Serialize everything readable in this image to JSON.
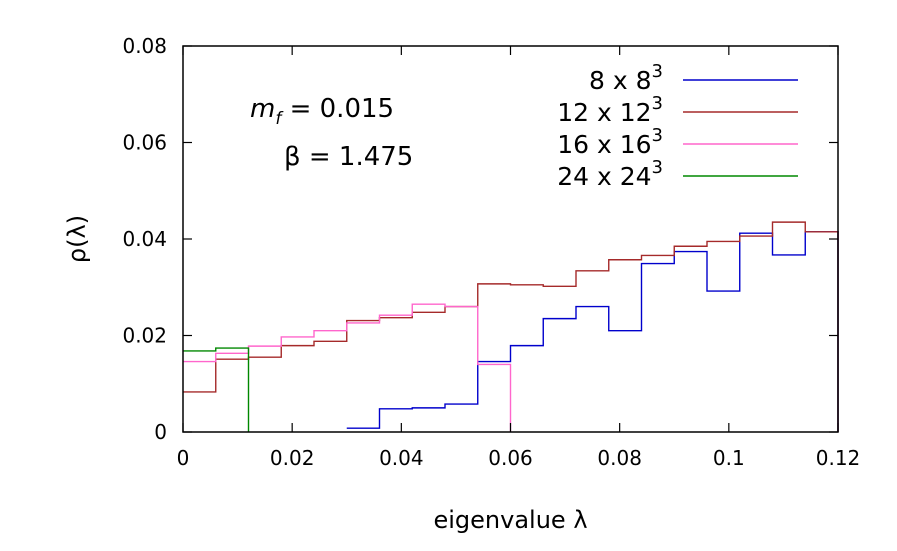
{
  "chart_data": {
    "type": "line",
    "step": true,
    "xlabel": "eigenvalue λ",
    "ylabel": "ρ(λ)",
    "xlim": [
      0,
      0.12
    ],
    "ylim": [
      0,
      0.08
    ],
    "xticks": [
      0,
      0.02,
      0.04,
      0.06,
      0.08,
      0.1,
      0.12
    ],
    "xtick_labels": [
      "0",
      "0.02",
      "0.04",
      "0.06",
      "0.08",
      "0.1",
      "0.12"
    ],
    "yticks": [
      0,
      0.02,
      0.04,
      0.06,
      0.08
    ],
    "ytick_labels": [
      "0",
      "0.02",
      "0.04",
      "0.06",
      "0.08"
    ],
    "legend_position": "top-right",
    "annotations": [
      {
        "symbol": "m",
        "subscript": "f",
        "text": " = 0.015"
      },
      {
        "text": "β = 1.475"
      }
    ],
    "series": [
      {
        "name": "8 x 8",
        "name_sup": "3",
        "color": "#0000cc",
        "edges": [
          0.03,
          0.036,
          0.042,
          0.048,
          0.054,
          0.06,
          0.066,
          0.072,
          0.078,
          0.084,
          0.09,
          0.096,
          0.102,
          0.108,
          0.114,
          0.12
        ],
        "values": [
          0.0008,
          0.0048,
          0.005,
          0.0058,
          0.0146,
          0.0179,
          0.0235,
          0.026,
          0.021,
          0.0349,
          0.0374,
          0.0292,
          0.0412,
          0.0367,
          0.0415
        ]
      },
      {
        "name": "12 x 12",
        "name_sup": "3",
        "color": "#a52a2a",
        "edges": [
          0,
          0.006,
          0.012,
          0.018,
          0.024,
          0.03,
          0.036,
          0.042,
          0.048,
          0.054,
          0.06,
          0.066,
          0.072,
          0.078,
          0.084,
          0.09,
          0.096,
          0.102,
          0.108,
          0.114,
          0.12
        ],
        "values": [
          0.0083,
          0.0151,
          0.0155,
          0.0179,
          0.0188,
          0.0231,
          0.0237,
          0.0248,
          0.026,
          0.0307,
          0.0305,
          0.0302,
          0.0334,
          0.0357,
          0.0366,
          0.0385,
          0.0395,
          0.0406,
          0.0435,
          0.0415
        ]
      },
      {
        "name": "16 x 16",
        "name_sup": "3",
        "color": "#ff66cc",
        "edges": [
          0,
          0.006,
          0.012,
          0.018,
          0.024,
          0.03,
          0.036,
          0.042,
          0.048,
          0.054,
          0.06
        ],
        "values": [
          0.0146,
          0.0163,
          0.0178,
          0.0197,
          0.021,
          0.0226,
          0.0242,
          0.0265,
          0.026,
          0.014
        ]
      },
      {
        "name": "24 x 24",
        "name_sup": "3",
        "color": "#008800",
        "edges": [
          0,
          0.006,
          0.012
        ],
        "values": [
          0.0168,
          0.0174
        ]
      }
    ]
  }
}
